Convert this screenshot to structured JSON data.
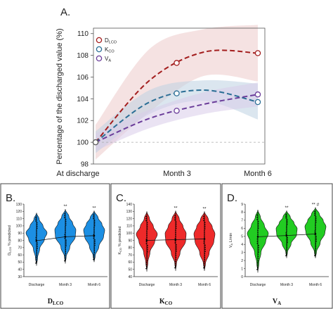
{
  "chart_data": [
    {
      "type": "line",
      "panel_label": "A.",
      "ylabel": "Percentage of the discharged value (%)",
      "ylim": [
        98,
        110.5
      ],
      "yticks": [
        98,
        100,
        102,
        104,
        106,
        108,
        110
      ],
      "categories": [
        "At discharge",
        "Month 3",
        "Month 6"
      ],
      "reference_line": 100,
      "legend_placement": "top-left",
      "series": [
        {
          "name": "DLCO",
          "legend_main": "D",
          "legend_sub": "LCO",
          "color": "#a31d1d",
          "band_color": "#eccaca",
          "values": [
            100,
            107.3,
            108.2
          ],
          "fit": [
            100,
            105.7,
            108.3,
            108.2
          ],
          "band_upper": [
            101.6,
            108.6,
            110.4,
            110.8
          ],
          "band_lower": [
            98.4,
            102.8,
            106.1,
            105.6
          ]
        },
        {
          "name": "KCO",
          "legend_main": "K",
          "legend_sub": "CO",
          "color": "#2a6e95",
          "band_color": "#bdd1e2",
          "values": [
            100,
            104.5,
            103.7
          ],
          "fit": [
            100,
            103.7,
            104.8,
            103.7
          ],
          "band_upper": [
            101.0,
            104.8,
            105.7,
            105.4
          ],
          "band_lower": [
            99.0,
            102.6,
            103.8,
            102.1
          ]
        },
        {
          "name": "VA",
          "legend_main": "V",
          "legend_sub": "A",
          "color": "#6b3d9a",
          "band_color": "#d8ccea",
          "values": [
            100,
            102.9,
            104.4
          ],
          "fit": [
            100,
            102.2,
            103.5,
            104.4
          ],
          "band_upper": [
            100.8,
            103.0,
            104.6,
            105.5
          ],
          "band_lower": [
            99.2,
            101.3,
            102.6,
            103.3
          ]
        }
      ]
    },
    {
      "type": "violin",
      "panel_label": "B.",
      "caption_main": "D",
      "caption_sub": "LCO",
      "ylabel": "DLCO % predicted",
      "ylabel_main": "D",
      "ylabel_sub": "LCO",
      "ylabel_rest": " % predicted",
      "ylim": [
        30,
        130
      ],
      "yticks": [
        30,
        40,
        50,
        60,
        70,
        80,
        90,
        100,
        110,
        120,
        130
      ],
      "categories": [
        "Discharge",
        "Month 3",
        "Month 6"
      ],
      "color": "#1c8fe3",
      "significance": [
        "",
        "**",
        "**"
      ],
      "medians": [
        79.5,
        85,
        86.5
      ],
      "ranges": [
        [
          45,
          118
        ],
        [
          48,
          123
        ],
        [
          50,
          121
        ]
      ]
    },
    {
      "type": "violin",
      "panel_label": "C.",
      "caption_main": "K",
      "caption_sub": "CO",
      "ylabel": "KCO % predicted",
      "ylabel_main": "K",
      "ylabel_sub": "CO",
      "ylabel_rest": " % predicted",
      "ylim": [
        40,
        140
      ],
      "yticks": [
        40,
        50,
        60,
        70,
        80,
        90,
        100,
        110,
        120,
        130,
        140
      ],
      "categories": [
        "Discharge",
        "Month 3",
        "Month 6"
      ],
      "color": "#ee2a2a",
      "significance": [
        "",
        "**",
        "**"
      ],
      "medians": [
        90,
        91,
        92
      ],
      "ranges": [
        [
          47,
          130
        ],
        [
          48,
          131
        ],
        [
          48,
          130
        ]
      ]
    },
    {
      "type": "violin",
      "panel_label": "D.",
      "caption_main": "V",
      "caption_sub": "A",
      "ylabel": "VA L/min",
      "ylabel_main": "V",
      "ylabel_sub": "A",
      "ylabel_rest": " L/min",
      "ylim": [
        0,
        9
      ],
      "yticks": [
        0,
        1,
        2,
        3,
        4,
        5,
        6,
        7,
        8,
        9
      ],
      "categories": [
        "Discharge",
        "Month 3",
        "Month 6"
      ],
      "color": "#22cc22",
      "significance": [
        "",
        "**",
        "** #"
      ],
      "medians": [
        4.95,
        5.1,
        5.3
      ],
      "ranges": [
        [
          0.5,
          8.3
        ],
        [
          2.3,
          8.2
        ],
        [
          2.3,
          8.6
        ]
      ]
    }
  ]
}
